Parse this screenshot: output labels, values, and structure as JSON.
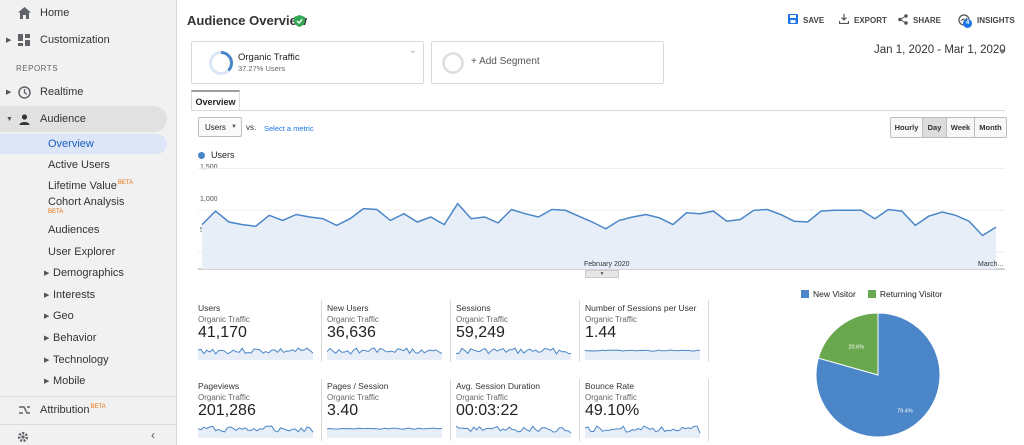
{
  "sidebar": {
    "home": "Home",
    "customization": "Customization",
    "reports_header": "REPORTS",
    "realtime": "Realtime",
    "audience": "Audience",
    "audience_items": [
      {
        "label": "Overview"
      },
      {
        "label": "Active Users"
      },
      {
        "label": "Lifetime Value",
        "badge": "BETA"
      },
      {
        "label": "Cohort Analysis",
        "badge": "BETA"
      },
      {
        "label": "Audiences"
      },
      {
        "label": "User Explorer"
      },
      {
        "label": "Demographics"
      },
      {
        "label": "Interests"
      },
      {
        "label": "Geo"
      },
      {
        "label": "Behavior"
      },
      {
        "label": "Technology"
      },
      {
        "label": "Mobile"
      }
    ],
    "attribution": "Attribution",
    "attribution_badge": "BETA",
    "collapse_icon": "chevron-left-icon",
    "settings_icon": "gear-icon"
  },
  "header": {
    "title": "Audience Overview",
    "save": "SAVE",
    "export": "EXPORT",
    "share": "SHARE",
    "insights": "INSIGHTS",
    "insights_badge": "4"
  },
  "segments": {
    "active": {
      "name": "Organic Traffic",
      "sub": "37.27% Users"
    },
    "add": "+ Add Segment"
  },
  "date_range": "Jan 1, 2020 - Mar 1, 2020",
  "tabs": {
    "overview": "Overview"
  },
  "controls": {
    "metric": "Users",
    "vs": "vs.",
    "select_metric": "Select a metric",
    "periods": [
      "Hourly",
      "Day",
      "Week",
      "Month"
    ],
    "active_period": "Day"
  },
  "chart_data": {
    "type": "area",
    "series": [
      {
        "name": "Users",
        "color": "#4a86c8",
        "values": [
          830,
          990,
          860,
          830,
          810,
          940,
          880,
          950,
          920,
          900,
          820,
          900,
          1020,
          1010,
          880,
          960,
          860,
          920,
          830,
          1080,
          900,
          920,
          850,
          1010,
          960,
          920,
          1010,
          1000,
          930,
          860,
          780,
          880,
          920,
          950,
          910,
          830,
          970,
          960,
          990,
          870,
          890,
          1000,
          1010,
          950,
          870,
          860,
          990,
          1000,
          1000,
          1000,
          900,
          1010,
          990,
          820,
          930,
          980,
          940,
          870,
          700,
          800
        ]
      }
    ],
    "y_ticks": [
      "1,500",
      "1,000",
      "500"
    ],
    "ylim": [
      300,
      1600
    ],
    "x_labels": [
      "February 2020",
      "March..."
    ],
    "legend": "Users"
  },
  "metrics": [
    {
      "name": "Users",
      "segment": "Organic Traffic",
      "value": "41,170"
    },
    {
      "name": "New Users",
      "segment": "Organic Traffic",
      "value": "36,636"
    },
    {
      "name": "Sessions",
      "segment": "Organic Traffic",
      "value": "59,249"
    },
    {
      "name": "Number of Sessions per User",
      "segment": "Organic Traffic",
      "value": "1.44"
    },
    {
      "name": "Pageviews",
      "segment": "Organic Traffic",
      "value": "201,286"
    },
    {
      "name": "Pages / Session",
      "segment": "Organic Traffic",
      "value": "3.40"
    },
    {
      "name": "Avg. Session Duration",
      "segment": "Organic Traffic",
      "value": "00:03:22"
    },
    {
      "name": "Bounce Rate",
      "segment": "Organic Traffic",
      "value": "49.10%"
    }
  ],
  "pie": {
    "type": "pie",
    "labels": [
      "New Visitor",
      "Returning Visitor"
    ],
    "values": [
      79.4,
      20.6
    ],
    "value_labels": [
      "79.4%",
      "20.6%"
    ],
    "colors": [
      "#4a86c8",
      "#6aa84f"
    ]
  }
}
